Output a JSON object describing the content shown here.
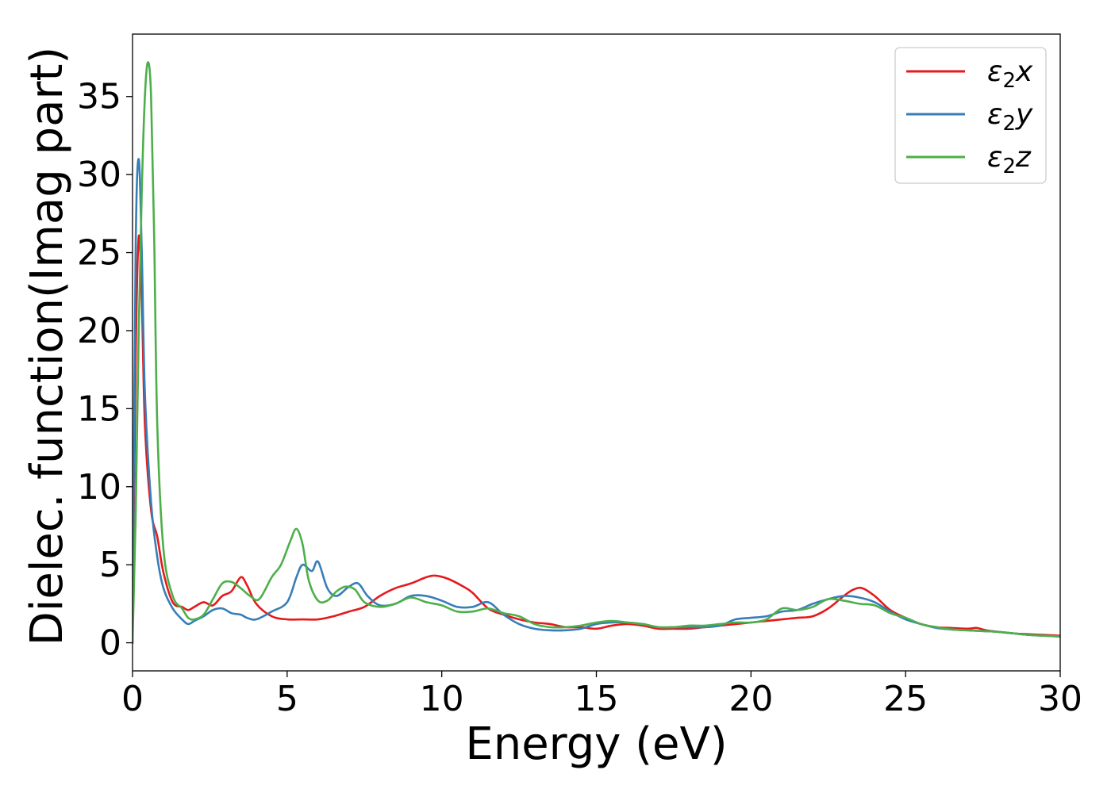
{
  "chart_data": {
    "type": "line",
    "title": "",
    "xlabel": "Energy (eV)",
    "ylabel": "Dielec. function(Imag part)",
    "xlim": [
      0,
      30
    ],
    "ylim": [
      -1.8,
      39
    ],
    "x_ticks": [
      "0",
      "5",
      "10",
      "15",
      "20",
      "25",
      "30"
    ],
    "y_ticks": [
      "0",
      "5",
      "10",
      "15",
      "20",
      "25",
      "30",
      "35"
    ],
    "grid": false,
    "legend_position": "top-right",
    "series": [
      {
        "name": "ε2x",
        "color": "#e41a1c",
        "x": [
          0,
          0.1,
          0.2,
          0.3,
          0.4,
          0.6,
          0.8,
          1.0,
          1.3,
          1.6,
          1.8,
          2.0,
          2.3,
          2.6,
          2.9,
          3.2,
          3.5,
          3.7,
          4.0,
          4.5,
          5.0,
          5.5,
          6.0,
          6.5,
          7.0,
          7.5,
          8.0,
          8.5,
          9.0,
          9.5,
          9.8,
          10.2,
          10.7,
          11.0,
          11.5,
          12.0,
          12.5,
          13.0,
          13.5,
          14.0,
          14.5,
          15.0,
          15.5,
          16.0,
          16.5,
          17.0,
          17.5,
          18.0,
          18.5,
          19.0,
          19.5,
          20.0,
          20.5,
          21.0,
          21.5,
          22.0,
          22.5,
          23.0,
          23.3,
          23.6,
          24.0,
          24.5,
          25.0,
          25.5,
          26.0,
          26.5,
          27.0,
          27.3,
          27.6,
          28.0,
          28.5,
          29.0,
          29.5,
          30.0
        ],
        "values": [
          0,
          18,
          26,
          22,
          14,
          8.5,
          6.8,
          4.5,
          2.6,
          2.3,
          2.1,
          2.3,
          2.6,
          2.4,
          3.0,
          3.3,
          4.2,
          3.7,
          2.5,
          1.7,
          1.5,
          1.5,
          1.5,
          1.7,
          2.0,
          2.3,
          3.0,
          3.5,
          3.8,
          4.2,
          4.3,
          4.1,
          3.6,
          3.2,
          2.2,
          1.8,
          1.5,
          1.3,
          1.2,
          1.0,
          1.0,
          0.9,
          1.1,
          1.2,
          1.1,
          0.9,
          0.9,
          0.9,
          1.0,
          1.1,
          1.2,
          1.3,
          1.4,
          1.5,
          1.6,
          1.7,
          2.2,
          3.0,
          3.4,
          3.5,
          3.0,
          2.1,
          1.6,
          1.2,
          1.0,
          0.95,
          0.9,
          0.95,
          0.8,
          0.7,
          0.6,
          0.55,
          0.5,
          0.45
        ]
      },
      {
        "name": "ε2y",
        "color": "#377eb8",
        "x": [
          0,
          0.1,
          0.2,
          0.3,
          0.4,
          0.6,
          0.8,
          1.0,
          1.3,
          1.6,
          1.8,
          2.0,
          2.3,
          2.6,
          2.9,
          3.2,
          3.5,
          3.7,
          4.0,
          4.5,
          5.0,
          5.3,
          5.5,
          5.8,
          6.0,
          6.3,
          6.6,
          7.0,
          7.3,
          7.6,
          8.0,
          8.5,
          9.0,
          9.5,
          10.0,
          10.5,
          11.0,
          11.5,
          12.0,
          12.5,
          13.0,
          13.5,
          14.0,
          14.5,
          15.0,
          15.5,
          16.0,
          16.5,
          17.0,
          17.5,
          18.0,
          18.5,
          19.0,
          19.5,
          20.0,
          20.5,
          21.0,
          21.5,
          22.0,
          22.5,
          23.0,
          23.5,
          24.0,
          24.5,
          25.0,
          25.5,
          26.0,
          26.5,
          27.0,
          27.5,
          28.0,
          28.5,
          29.0,
          29.5,
          30.0
        ],
        "values": [
          0,
          25,
          31,
          25,
          16,
          9.0,
          5.5,
          3.5,
          2.2,
          1.5,
          1.2,
          1.4,
          1.7,
          2.1,
          2.2,
          1.9,
          1.8,
          1.6,
          1.5,
          2.0,
          2.6,
          4.2,
          5.0,
          4.6,
          5.2,
          3.5,
          3.0,
          3.6,
          3.8,
          3.0,
          2.4,
          2.5,
          3.0,
          3.0,
          2.7,
          2.3,
          2.3,
          2.6,
          1.8,
          1.2,
          0.9,
          0.8,
          0.8,
          0.9,
          1.2,
          1.3,
          1.3,
          1.2,
          1.0,
          1.0,
          1.0,
          1.0,
          1.1,
          1.5,
          1.6,
          1.7,
          2.0,
          2.1,
          2.5,
          2.8,
          3.0,
          2.9,
          2.6,
          2.0,
          1.5,
          1.2,
          0.95,
          0.85,
          0.8,
          0.75,
          0.7,
          0.6,
          0.5,
          0.45,
          0.4
        ]
      },
      {
        "name": "ε2z",
        "color": "#4daf4a",
        "x": [
          0,
          0.1,
          0.2,
          0.3,
          0.4,
          0.5,
          0.6,
          0.7,
          0.8,
          1.0,
          1.3,
          1.6,
          1.8,
          2.0,
          2.3,
          2.6,
          2.9,
          3.2,
          3.5,
          3.8,
          4.1,
          4.5,
          4.8,
          5.1,
          5.3,
          5.5,
          5.7,
          6.0,
          6.3,
          6.6,
          6.9,
          7.2,
          7.5,
          8.0,
          8.5,
          9.0,
          9.5,
          10.0,
          10.5,
          11.0,
          11.5,
          12.0,
          12.5,
          13.0,
          13.5,
          14.0,
          14.5,
          15.0,
          15.5,
          16.0,
          16.5,
          17.0,
          17.5,
          18.0,
          18.5,
          19.0,
          19.5,
          20.0,
          20.5,
          21.0,
          21.5,
          22.0,
          22.5,
          23.0,
          23.5,
          24.0,
          24.5,
          25.0,
          25.5,
          26.0,
          26.5,
          27.0,
          27.5,
          28.0,
          28.5,
          29.0,
          29.5,
          30.0
        ],
        "values": [
          0,
          8,
          20,
          29,
          35,
          37.2,
          35,
          26,
          14,
          6.0,
          3.0,
          2.2,
          1.6,
          1.5,
          1.8,
          2.8,
          3.8,
          3.9,
          3.5,
          3.0,
          2.8,
          4.2,
          5.0,
          6.5,
          7.3,
          6.3,
          4.0,
          2.7,
          2.7,
          3.3,
          3.6,
          3.4,
          2.6,
          2.3,
          2.5,
          2.9,
          2.6,
          2.4,
          2.0,
          2.0,
          2.2,
          1.9,
          1.7,
          1.2,
          1.0,
          1.0,
          1.1,
          1.3,
          1.4,
          1.3,
          1.2,
          1.0,
          1.0,
          1.1,
          1.1,
          1.2,
          1.3,
          1.3,
          1.5,
          2.2,
          2.1,
          2.3,
          2.8,
          2.7,
          2.5,
          2.4,
          1.9,
          1.6,
          1.2,
          1.0,
          0.85,
          0.8,
          0.75,
          0.7,
          0.6,
          0.5,
          0.45,
          0.4
        ]
      }
    ]
  }
}
